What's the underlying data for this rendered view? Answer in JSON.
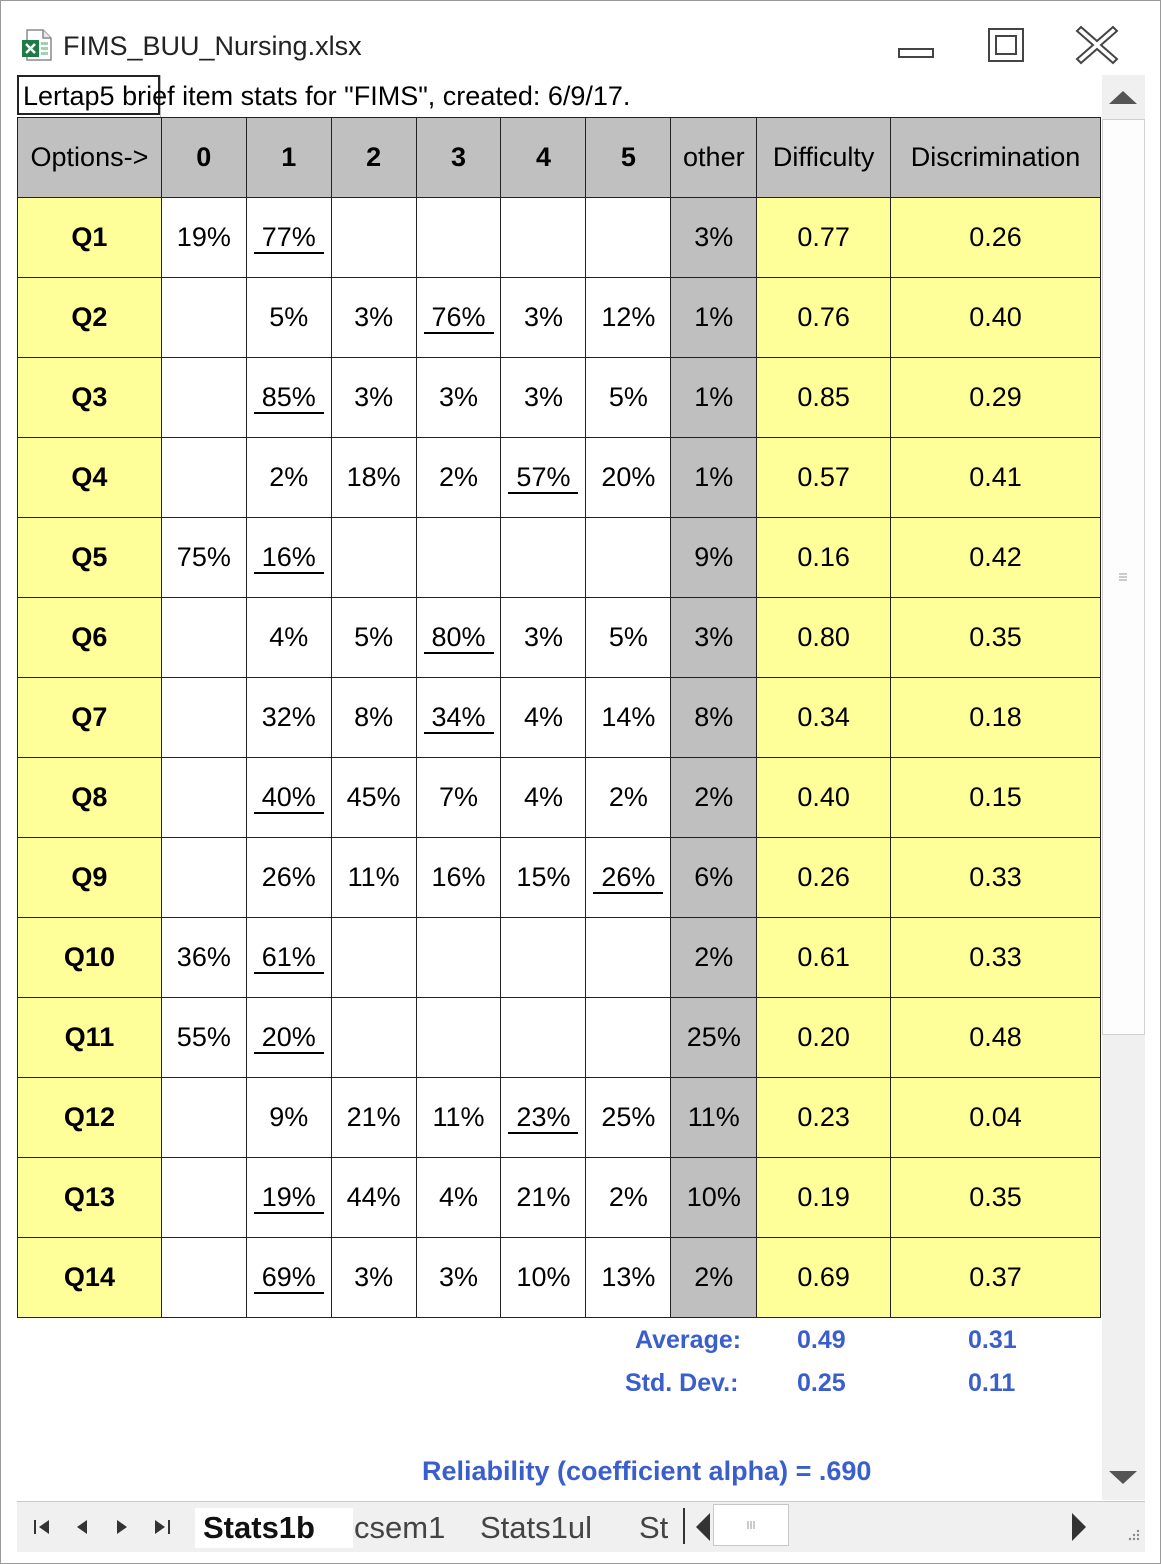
{
  "window": {
    "title": "FIMS_BUU_Nursing.xlsx",
    "icons": [
      "excel-file-icon",
      "minimize-icon",
      "maximize-icon",
      "close-icon"
    ]
  },
  "caption": "Lertap5 brief item stats for \"FIMS\", created: 6/9/17.",
  "table": {
    "headers": [
      "Options->",
      "0",
      "1",
      "2",
      "3",
      "4",
      "5",
      "other",
      "Difficulty",
      "Discrimination"
    ],
    "rows": [
      {
        "item": "Q1",
        "c0": "19%",
        "c1": "77%",
        "c2": "",
        "c3": "",
        "c4": "",
        "c5": "",
        "other": "3%",
        "diff": "0.77",
        "disc": "0.26",
        "key": 1
      },
      {
        "item": "Q2",
        "c0": "",
        "c1": "5%",
        "c2": "3%",
        "c3": "76%",
        "c4": "3%",
        "c5": "12%",
        "other": "1%",
        "diff": "0.76",
        "disc": "0.40",
        "key": 3
      },
      {
        "item": "Q3",
        "c0": "",
        "c1": "85%",
        "c2": "3%",
        "c3": "3%",
        "c4": "3%",
        "c5": "5%",
        "other": "1%",
        "diff": "0.85",
        "disc": "0.29",
        "key": 1
      },
      {
        "item": "Q4",
        "c0": "",
        "c1": "2%",
        "c2": "18%",
        "c3": "2%",
        "c4": "57%",
        "c5": "20%",
        "other": "1%",
        "diff": "0.57",
        "disc": "0.41",
        "key": 4
      },
      {
        "item": "Q5",
        "c0": "75%",
        "c1": "16%",
        "c2": "",
        "c3": "",
        "c4": "",
        "c5": "",
        "other": "9%",
        "diff": "0.16",
        "disc": "0.42",
        "key": 1
      },
      {
        "item": "Q6",
        "c0": "",
        "c1": "4%",
        "c2": "5%",
        "c3": "80%",
        "c4": "3%",
        "c5": "5%",
        "other": "3%",
        "diff": "0.80",
        "disc": "0.35",
        "key": 3
      },
      {
        "item": "Q7",
        "c0": "",
        "c1": "32%",
        "c2": "8%",
        "c3": "34%",
        "c4": "4%",
        "c5": "14%",
        "other": "8%",
        "diff": "0.34",
        "disc": "0.18",
        "key": 3
      },
      {
        "item": "Q8",
        "c0": "",
        "c1": "40%",
        "c2": "45%",
        "c3": "7%",
        "c4": "4%",
        "c5": "2%",
        "other": "2%",
        "diff": "0.40",
        "disc": "0.15",
        "key": 1
      },
      {
        "item": "Q9",
        "c0": "",
        "c1": "26%",
        "c2": "11%",
        "c3": "16%",
        "c4": "15%",
        "c5": "26%",
        "other": "6%",
        "diff": "0.26",
        "disc": "0.33",
        "key": 5
      },
      {
        "item": "Q10",
        "c0": "36%",
        "c1": "61%",
        "c2": "",
        "c3": "",
        "c4": "",
        "c5": "",
        "other": "2%",
        "diff": "0.61",
        "disc": "0.33",
        "key": 1
      },
      {
        "item": "Q11",
        "c0": "55%",
        "c1": "20%",
        "c2": "",
        "c3": "",
        "c4": "",
        "c5": "",
        "other": "25%",
        "diff": "0.20",
        "disc": "0.48",
        "key": 1
      },
      {
        "item": "Q12",
        "c0": "",
        "c1": "9%",
        "c2": "21%",
        "c3": "11%",
        "c4": "23%",
        "c5": "25%",
        "other": "11%",
        "diff": "0.23",
        "disc": "0.04",
        "key": 4
      },
      {
        "item": "Q13",
        "c0": "",
        "c1": "19%",
        "c2": "44%",
        "c3": "4%",
        "c4": "21%",
        "c5": "2%",
        "other": "10%",
        "diff": "0.19",
        "disc": "0.35",
        "key": 1
      },
      {
        "item": "Q14",
        "c0": "",
        "c1": "69%",
        "c2": "3%",
        "c3": "3%",
        "c4": "10%",
        "c5": "13%",
        "other": "2%",
        "diff": "0.69",
        "disc": "0.37",
        "key": 1
      }
    ]
  },
  "summary": {
    "average_label": "Average:",
    "average_difficulty": "0.49",
    "average_discrimination": "0.31",
    "sd_label": "Std. Dev.:",
    "sd_difficulty": "0.25",
    "sd_discrimination": "0.11",
    "reliability": "Reliability (coefficient alpha) =  .690"
  },
  "sheet_tabs": [
    {
      "label": "Stats1b",
      "active": true
    },
    {
      "label": "csem1",
      "active": false
    },
    {
      "label": "Stats1ul",
      "active": false
    },
    {
      "label": "St",
      "active": false
    }
  ],
  "colors": {
    "header_gray": "#c0c0c0",
    "item_yellow": "#ffff99",
    "other_gray": "#bfbfbf",
    "summary_blue": "#3a5fcc"
  }
}
